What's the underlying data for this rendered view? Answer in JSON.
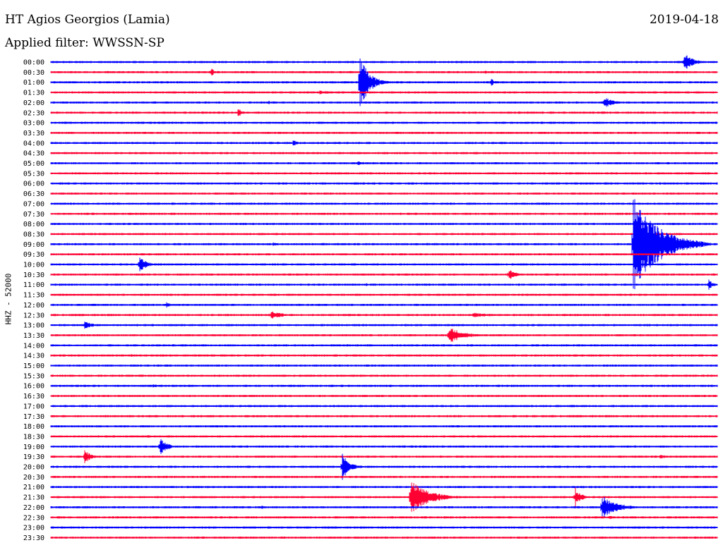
{
  "header": {
    "station": "HT Agios Georgios (Lamia)",
    "date": "2019-04-18",
    "filter_label": "Applied filter:",
    "filter_value": "WWSSN-SP"
  },
  "channel_label": "HHZ - 52000",
  "colors": {
    "even_trace": "#0000ff",
    "odd_trace": "#ff0033",
    "text": "#000000"
  },
  "chart_data": {
    "type": "line",
    "rows": [
      "00:00",
      "00:30",
      "01:00",
      "01:30",
      "02:00",
      "02:30",
      "03:00",
      "03:30",
      "04:00",
      "04:30",
      "05:00",
      "05:30",
      "06:00",
      "06:30",
      "07:00",
      "07:30",
      "08:00",
      "08:30",
      "09:00",
      "09:30",
      "10:00",
      "10:30",
      "11:00",
      "11:30",
      "12:00",
      "12:30",
      "13:00",
      "13:30",
      "14:00",
      "14:30",
      "15:00",
      "15:30",
      "16:00",
      "16:30",
      "17:00",
      "17:30",
      "18:00",
      "18:30",
      "19:00",
      "19:30",
      "20:00",
      "20:30",
      "21:00",
      "21:30",
      "22:00",
      "22:30",
      "23:00",
      "23:30"
    ],
    "x_range_minutes": [
      0,
      30
    ],
    "events": [
      {
        "row": 0,
        "minute": 28.5,
        "amp": 14,
        "dur": 1.2
      },
      {
        "row": 0,
        "minute": 5.0,
        "amp": 3,
        "dur": 0.3
      },
      {
        "row": 1,
        "minute": 7.2,
        "amp": 6,
        "dur": 0.8
      },
      {
        "row": 1,
        "minute": 19.5,
        "amp": 3,
        "dur": 0.9
      },
      {
        "row": 1,
        "minute": 16.5,
        "amp": 2,
        "dur": 0.8
      },
      {
        "row": 2,
        "minute": 13.9,
        "amp": 40,
        "dur": 1.3
      },
      {
        "row": 2,
        "minute": 19.8,
        "amp": 7,
        "dur": 0.5
      },
      {
        "row": 2,
        "minute": 15.1,
        "amp": 3,
        "dur": 0.4
      },
      {
        "row": 3,
        "minute": 12.1,
        "amp": 4,
        "dur": 1.2
      },
      {
        "row": 4,
        "minute": 24.9,
        "amp": 9,
        "dur": 1.2
      },
      {
        "row": 4,
        "minute": 9.8,
        "amp": 3,
        "dur": 0.6
      },
      {
        "row": 5,
        "minute": 8.4,
        "amp": 8,
        "dur": 0.6
      },
      {
        "row": 7,
        "minute": 22.0,
        "amp": 2,
        "dur": 0.6
      },
      {
        "row": 7,
        "minute": 26.6,
        "amp": 2,
        "dur": 0.4
      },
      {
        "row": 8,
        "minute": 10.9,
        "amp": 4,
        "dur": 1.2
      },
      {
        "row": 10,
        "minute": 13.8,
        "amp": 3,
        "dur": 1.4
      },
      {
        "row": 14,
        "minute": 22.3,
        "amp": 2,
        "dur": 1.0
      },
      {
        "row": 18,
        "minute": 26.2,
        "amp": 70,
        "dur": 3.5
      },
      {
        "row": 18,
        "minute": 10.0,
        "amp": 3,
        "dur": 0.6
      },
      {
        "row": 20,
        "minute": 4.0,
        "amp": 14,
        "dur": 0.9
      },
      {
        "row": 21,
        "minute": 20.6,
        "amp": 9,
        "dur": 0.9
      },
      {
        "row": 22,
        "minute": 29.6,
        "amp": 8,
        "dur": 0.6
      },
      {
        "row": 22,
        "minute": 14.2,
        "amp": 3,
        "dur": 0.3
      },
      {
        "row": 22,
        "minute": 16.4,
        "amp": 3,
        "dur": 0.3
      },
      {
        "row": 24,
        "minute": 5.2,
        "amp": 4,
        "dur": 0.8
      },
      {
        "row": 25,
        "minute": 9.9,
        "amp": 7,
        "dur": 1.6
      },
      {
        "row": 25,
        "minute": 19.0,
        "amp": 4,
        "dur": 2.8
      },
      {
        "row": 26,
        "minute": 1.5,
        "amp": 6,
        "dur": 1.3
      },
      {
        "row": 27,
        "minute": 17.9,
        "amp": 13,
        "dur": 2.0
      },
      {
        "row": 29,
        "minute": 3.6,
        "amp": 2,
        "dur": 0.8
      },
      {
        "row": 32,
        "minute": 4.6,
        "amp": 3,
        "dur": 1.0
      },
      {
        "row": 37,
        "minute": 4.3,
        "amp": 3,
        "dur": 0.9
      },
      {
        "row": 38,
        "minute": 4.9,
        "amp": 13,
        "dur": 1.0
      },
      {
        "row": 38,
        "minute": 22.7,
        "amp": 2,
        "dur": 0.8
      },
      {
        "row": 39,
        "minute": 1.5,
        "amp": 12,
        "dur": 0.8
      },
      {
        "row": 39,
        "minute": 27.4,
        "amp": 3,
        "dur": 1.3
      },
      {
        "row": 40,
        "minute": 13.1,
        "amp": 20,
        "dur": 1.1
      },
      {
        "row": 43,
        "minute": 16.2,
        "amp": 24,
        "dur": 2.6
      },
      {
        "row": 43,
        "minute": 23.6,
        "amp": 14,
        "dur": 0.8
      },
      {
        "row": 44,
        "minute": 24.8,
        "amp": 18,
        "dur": 2.0
      },
      {
        "row": 44,
        "minute": 9.5,
        "amp": 3,
        "dur": 0.3
      },
      {
        "row": 45,
        "minute": 25.1,
        "amp": 3,
        "dur": 1.0
      },
      {
        "row": 46,
        "minute": 27.5,
        "amp": 3,
        "dur": 0.4
      }
    ]
  }
}
